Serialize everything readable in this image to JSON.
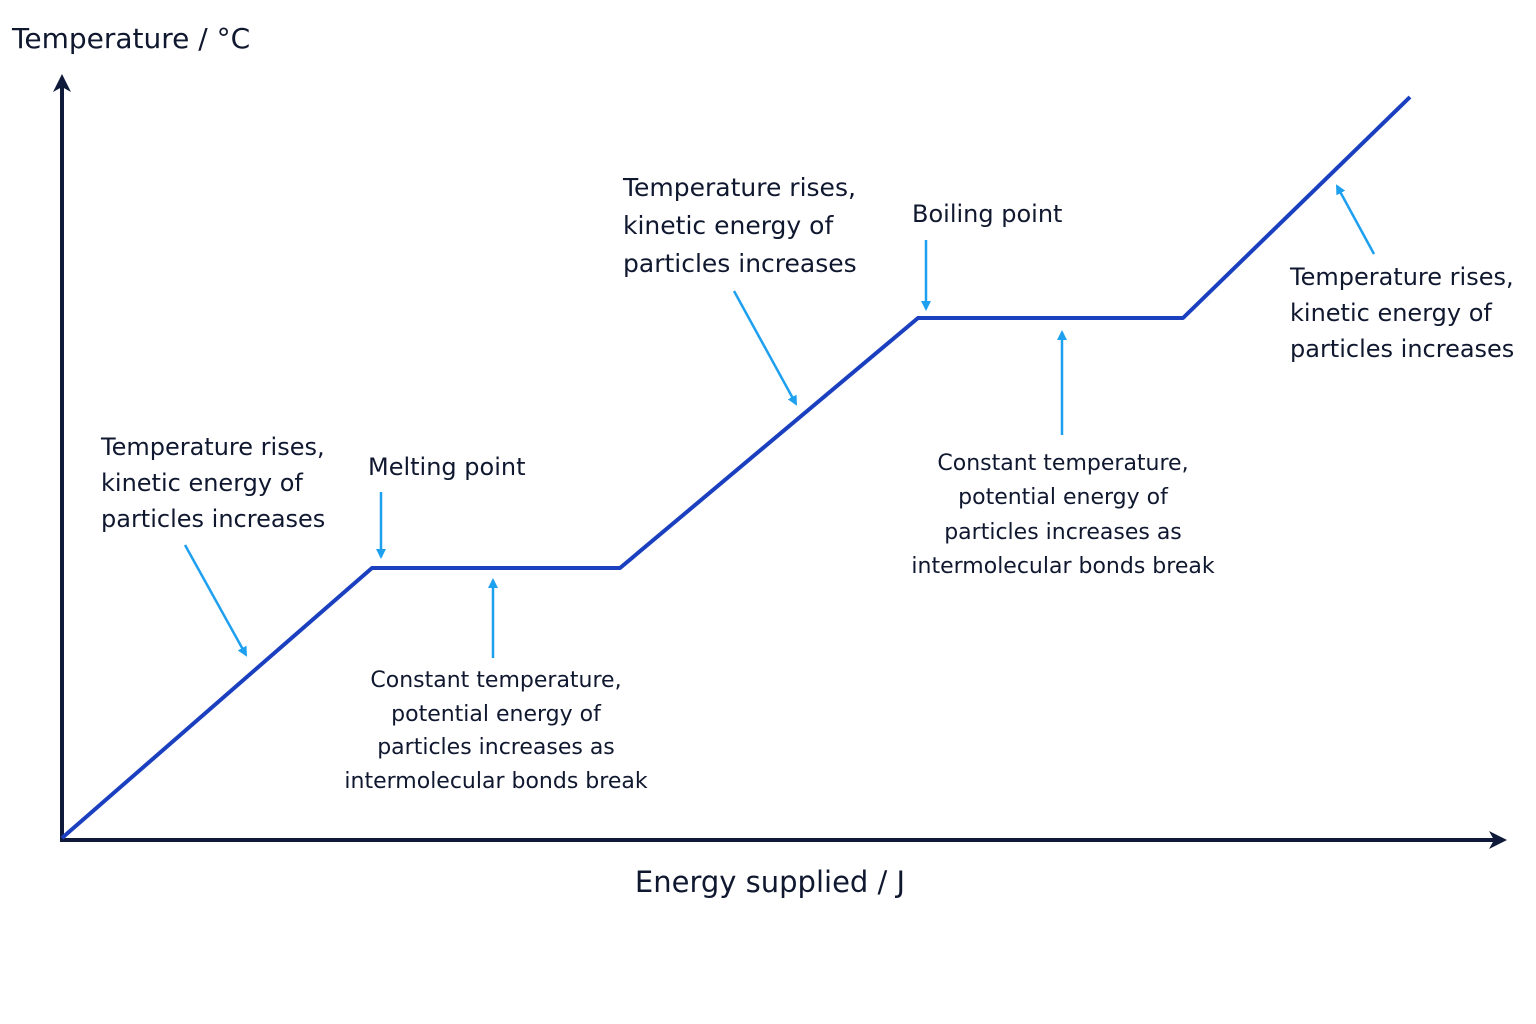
{
  "axes": {
    "y_label": "Temperature / °C",
    "x_label": "Energy supplied / J"
  },
  "annotations": [
    {
      "lines": [
        "Temperature rises,",
        "kinetic energy of",
        "particles increases"
      ]
    },
    {
      "lines": [
        "Melting point"
      ]
    },
    {
      "lines": [
        "Constant temperature,",
        "potential energy of",
        "particles increases as",
        "intermolecular bonds break"
      ]
    },
    {
      "lines": [
        "Temperature rises,",
        "kinetic energy of",
        "particles increases"
      ]
    },
    {
      "lines": [
        "Boiling point"
      ]
    },
    {
      "lines": [
        "Constant temperature,",
        "potential energy of",
        "particles increases as",
        "intermolecular bonds break"
      ]
    },
    {
      "lines": [
        "Temperature rises,",
        "kinetic energy of",
        "particles increases"
      ]
    }
  ]
}
